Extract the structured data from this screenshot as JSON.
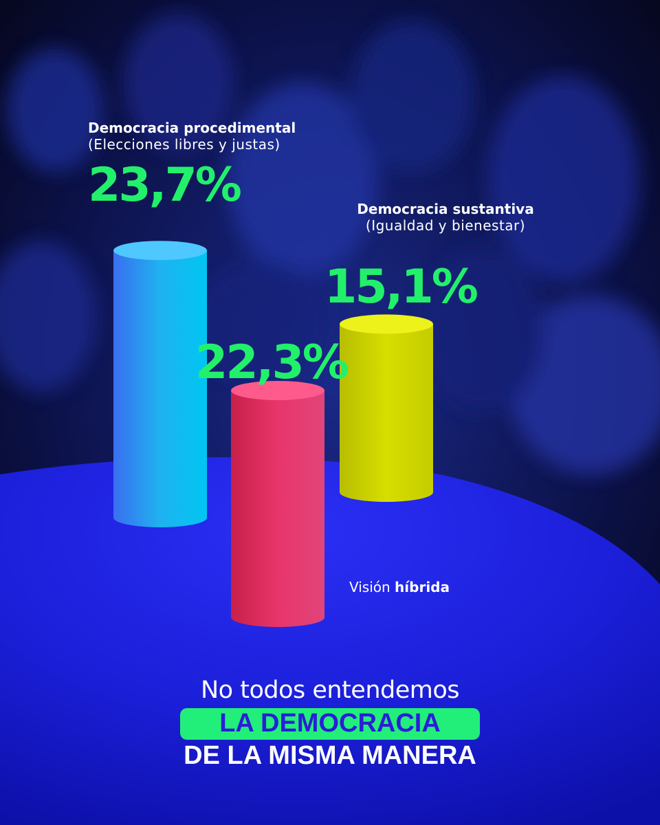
{
  "chart_data": {
    "type": "bar",
    "style": "3d-cylinder",
    "series": [
      {
        "name": "Democracia procedimental",
        "description": "(Elecciones libres y justas)",
        "value": 23.7,
        "value_label": "23,7%",
        "color": "#2a8df0"
      },
      {
        "name": "Visión híbrida",
        "value": 22.3,
        "value_label": "22,3%",
        "color": "#e8356b"
      },
      {
        "name": "Democracia sustantiva",
        "description": "(Igualdad y bienestar)",
        "value": 15.1,
        "value_label": "15,1%",
        "color": "#d6dc05"
      }
    ],
    "hybrid_label": {
      "prefix": "Visión",
      "bold": "híbrida"
    }
  },
  "headline": {
    "line1": "No todos entendemos",
    "line2": "LA DEMOCRACIA",
    "line3": "DE LA MISMA MANERA"
  },
  "colors": {
    "background": "#06081f",
    "floor": "#1a1fe0",
    "accent_green": "#22f06b",
    "accent_blue": "#2a1ed8"
  }
}
